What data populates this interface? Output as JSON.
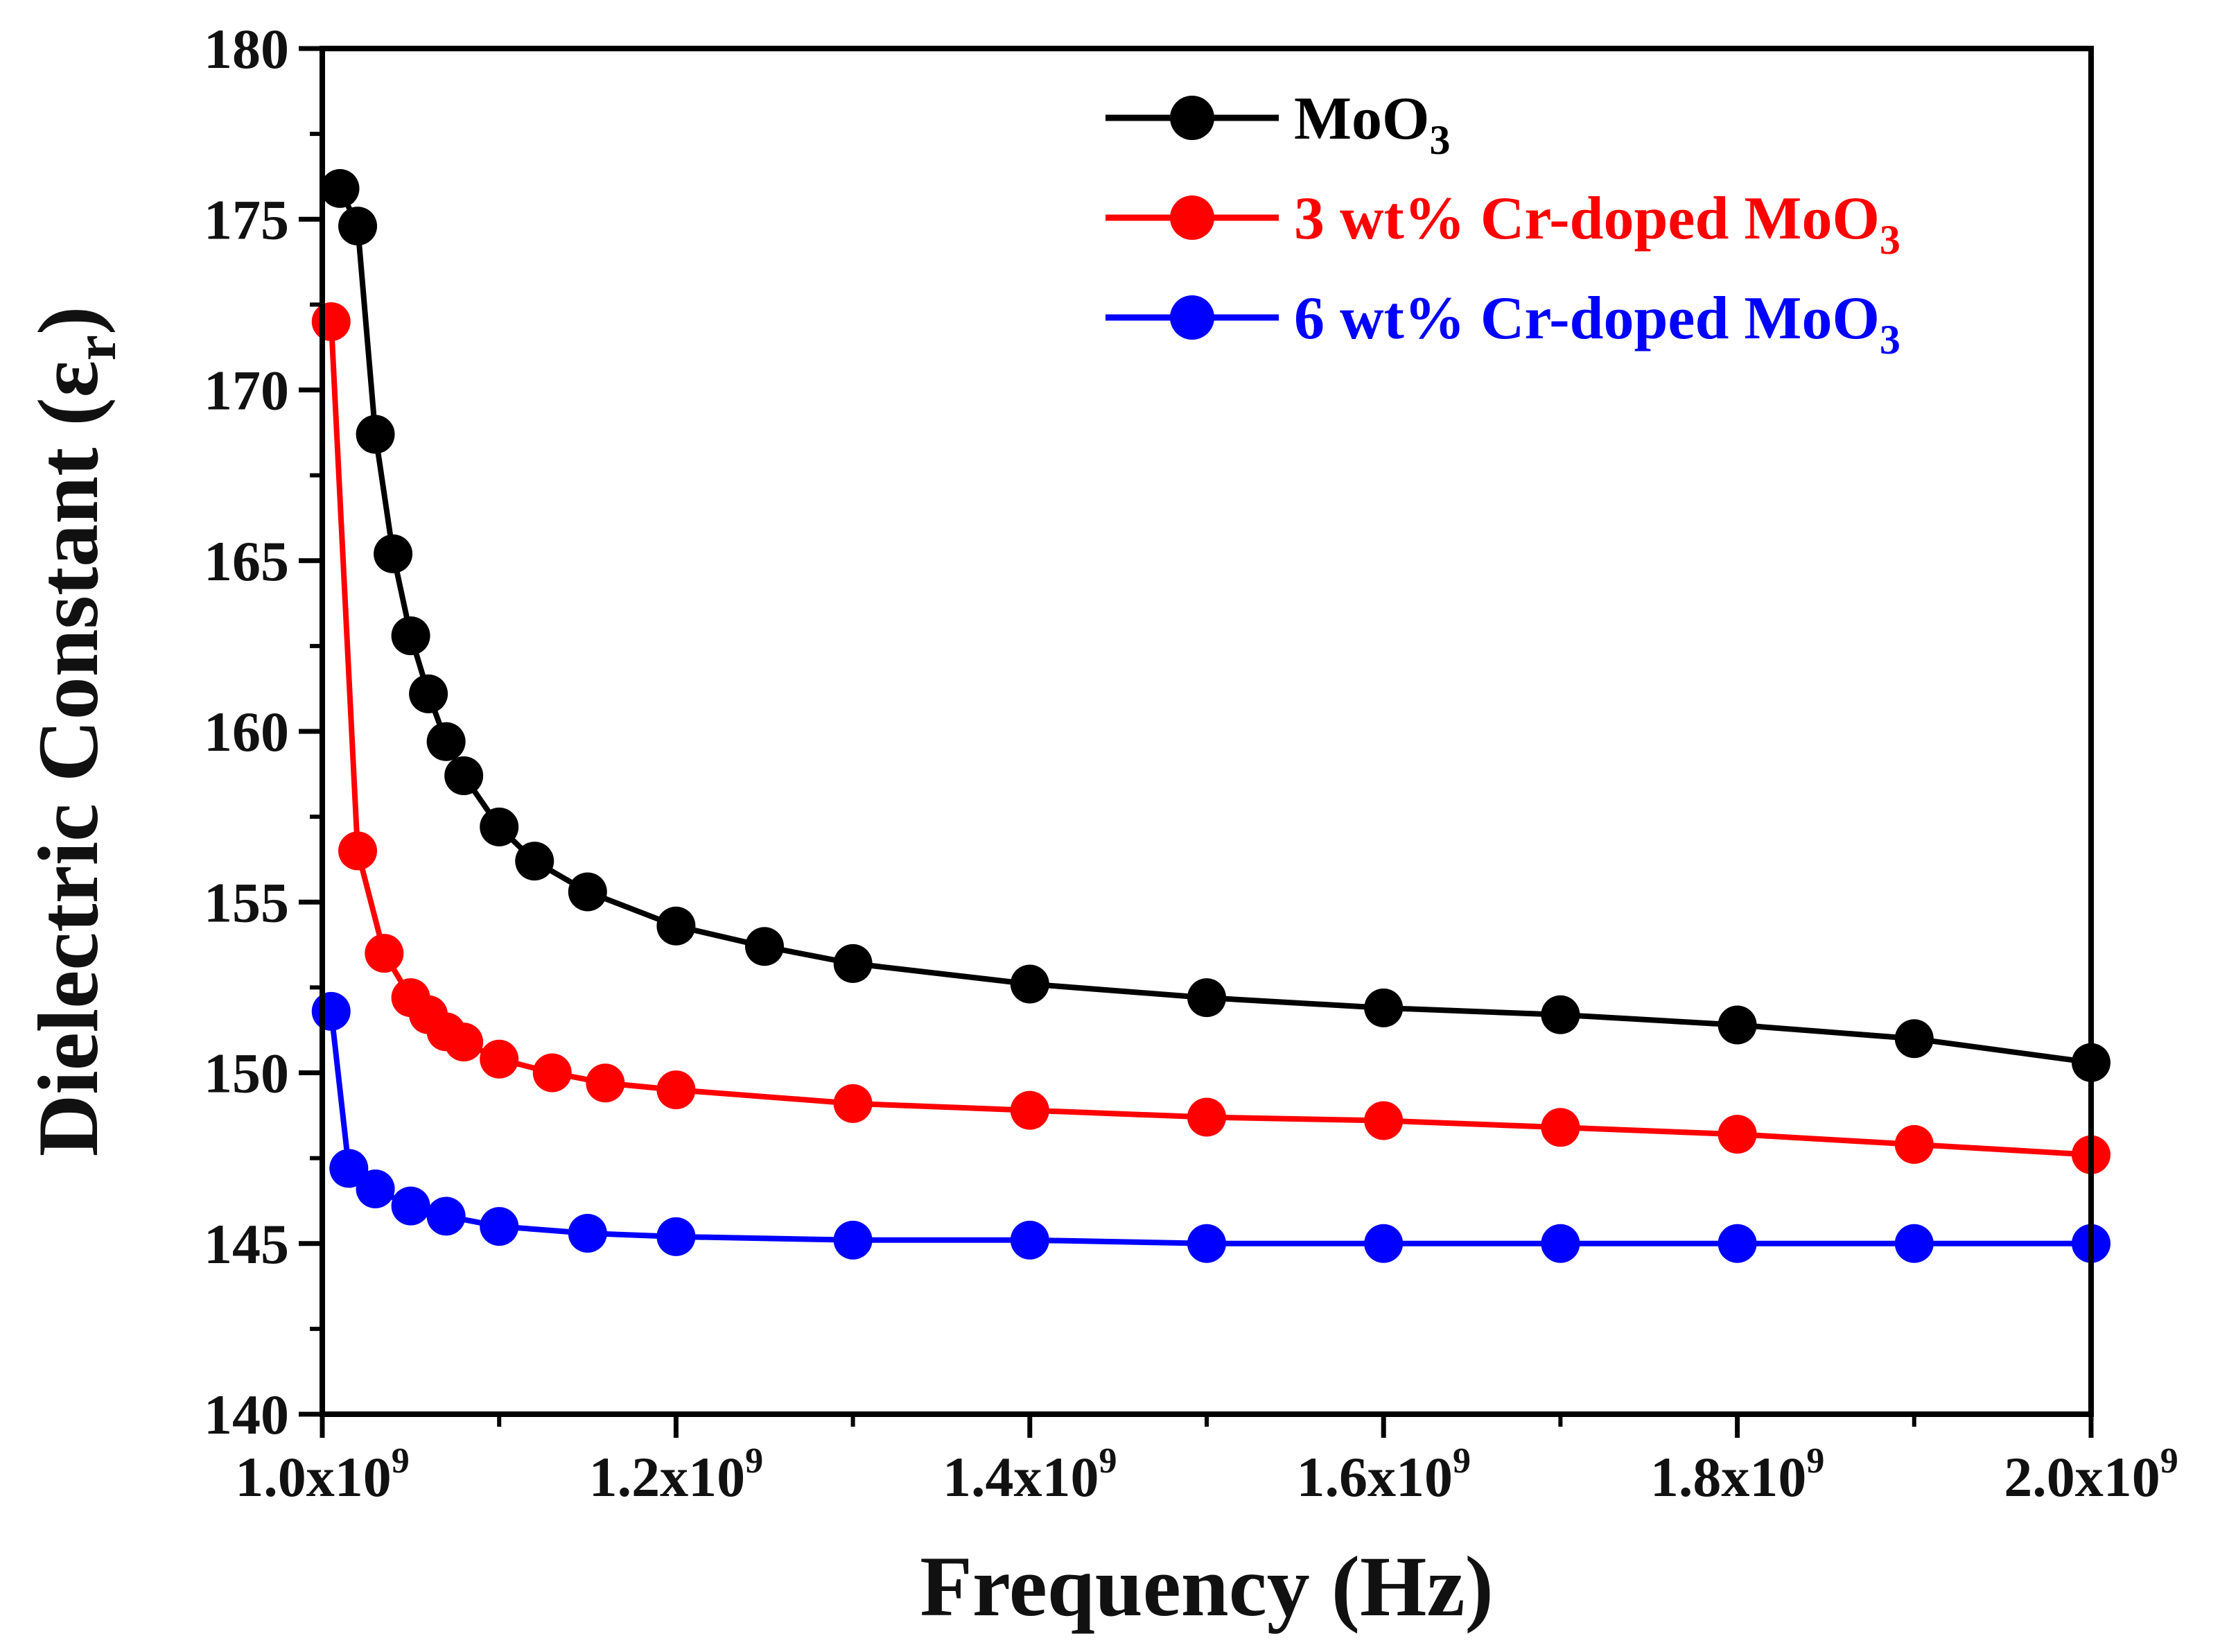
{
  "chart_data": {
    "type": "line",
    "title": "",
    "xlabel": "Frequency (Hz)",
    "ylabel": "Dielectric Constant (ε",
    "ylabel_sub": "r",
    "ylabel_close": ")",
    "xlim": [
      1000000000,
      2000000000
    ],
    "ylim": [
      140,
      180
    ],
    "x_ticks": [
      {
        "value": 1000000000,
        "mantissa": "1.0x10",
        "exp": "9"
      },
      {
        "value": 1200000000,
        "mantissa": "1.2x10",
        "exp": "9"
      },
      {
        "value": 1400000000,
        "mantissa": "1.4x10",
        "exp": "9"
      },
      {
        "value": 1600000000,
        "mantissa": "1.6x10",
        "exp": "9"
      },
      {
        "value": 1800000000,
        "mantissa": "1.8x10",
        "exp": "9"
      },
      {
        "value": 2000000000,
        "mantissa": "2.0x10",
        "exp": "9"
      }
    ],
    "y_ticks": [
      140,
      145,
      150,
      155,
      160,
      165,
      170,
      175,
      180
    ],
    "grid": false,
    "legend_position": "top-right",
    "series": [
      {
        "name": "MoO",
        "name_sub": "3",
        "color": "#000000",
        "x": [
          1010000000,
          1020000000,
          1030000000,
          1040000000,
          1050000000,
          1060000000,
          1070000000,
          1080000000,
          1100000000,
          1120000000,
          1150000000,
          1200000000,
          1250000000,
          1300000000,
          1400000000,
          1500000000,
          1600000000,
          1700000000,
          1800000000,
          1900000000,
          2000000000
        ],
        "y": [
          175.9,
          174.8,
          168.7,
          165.2,
          162.8,
          161.1,
          159.7,
          158.7,
          157.2,
          156.2,
          155.3,
          154.3,
          153.7,
          153.2,
          152.6,
          152.2,
          151.9,
          151.7,
          151.4,
          151.0,
          150.3
        ]
      },
      {
        "name": "3 wt% Cr-doped MoO",
        "name_sub": "3",
        "color": "#ff0000",
        "x": [
          1005000000,
          1020000000,
          1035000000,
          1050000000,
          1060000000,
          1070000000,
          1080000000,
          1100000000,
          1130000000,
          1160000000,
          1200000000,
          1300000000,
          1400000000,
          1500000000,
          1600000000,
          1700000000,
          1800000000,
          1900000000,
          2000000000
        ],
        "y": [
          172.0,
          156.5,
          153.5,
          152.2,
          151.7,
          151.2,
          150.9,
          150.4,
          150.0,
          149.7,
          149.5,
          149.1,
          148.9,
          148.7,
          148.6,
          148.4,
          148.2,
          147.9,
          147.6
        ]
      },
      {
        "name": "6 wt% Cr-doped MoO",
        "name_sub": "3",
        "color": "#0000ff",
        "x": [
          1005000000,
          1015000000,
          1030000000,
          1050000000,
          1070000000,
          1100000000,
          1150000000,
          1200000000,
          1300000000,
          1400000000,
          1500000000,
          1600000000,
          1700000000,
          1800000000,
          1900000000,
          2000000000
        ],
        "y": [
          151.8,
          147.2,
          146.6,
          146.1,
          145.8,
          145.5,
          145.3,
          145.2,
          145.1,
          145.1,
          145.0,
          145.0,
          145.0,
          145.0,
          145.0,
          145.0
        ]
      }
    ]
  }
}
